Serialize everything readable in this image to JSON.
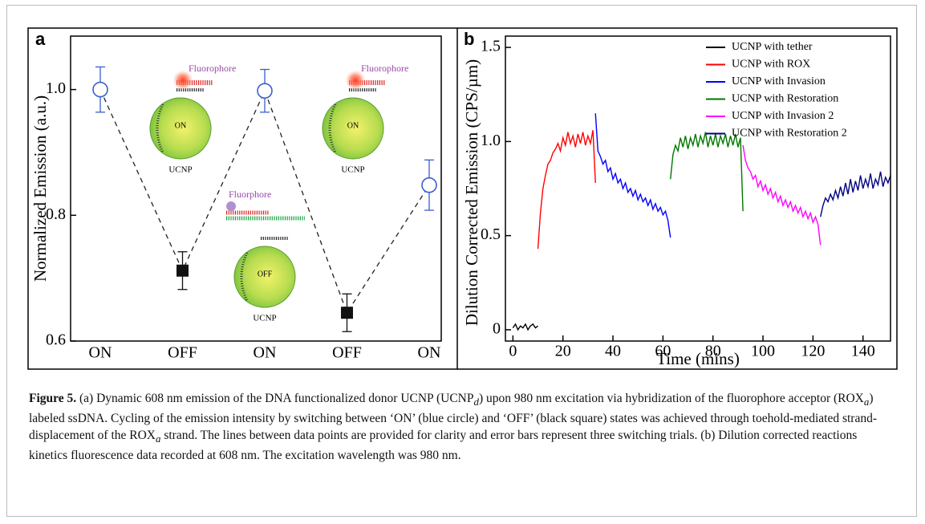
{
  "chart_data": [
    {
      "type": "line",
      "panel_label": "a",
      "ylabel": "Normalized Emission (a.u.)",
      "categories": [
        "ON",
        "OFF",
        "ON",
        "OFF",
        "ON"
      ],
      "values": [
        1.0,
        0.712,
        0.998,
        0.645,
        0.848
      ],
      "errors": [
        0.036,
        0.03,
        0.034,
        0.03,
        0.04
      ],
      "point_styles": [
        "circle",
        "square",
        "circle",
        "square",
        "circle"
      ],
      "point_colors": [
        "#3a5fcd",
        "#111111",
        "#3a5fcd",
        "#111111",
        "#3a5fcd"
      ],
      "line_style": "dashed",
      "ylim": [
        0.6,
        1.085
      ],
      "yticks": [
        0.6,
        0.8,
        {
          "value": 1,
          "label": "1.0"
        }
      ],
      "annotations": [
        "Fluorophore",
        "ON",
        "UCNP",
        "Fluorophore",
        "ON",
        "UCNP",
        "Fluorphore",
        "OFF",
        "UCNP"
      ]
    },
    {
      "type": "line",
      "panel_label": "b",
      "xlabel": "Time (mins)",
      "ylabel": "Dilution Corrected Emission (CPS/µm)",
      "xlim": [
        -3,
        151
      ],
      "ylim": [
        -0.06,
        1.56
      ],
      "xticks": [
        0,
        20,
        40,
        60,
        80,
        100,
        120,
        140
      ],
      "yticks": [
        0,
        0.5,
        {
          "value": 1,
          "label": "1.0"
        },
        1.5
      ],
      "legend": "upper right",
      "series": [
        {
          "name": "UCNP with tether",
          "color": "#000000",
          "x": [
            0,
            1,
            2,
            3,
            4,
            5,
            6,
            7,
            8,
            9,
            10
          ],
          "values": [
            0.01,
            0.03,
            0.0,
            0.02,
            0.01,
            0.03,
            0.0,
            0.02,
            0.03,
            0.01,
            0.02
          ]
        },
        {
          "name": "UCNP with ROX",
          "color": "#ff0000",
          "x": [
            10,
            11,
            12,
            13,
            14,
            15,
            16,
            17,
            18,
            19,
            20,
            21,
            22,
            23,
            24,
            25,
            26,
            27,
            28,
            29,
            30,
            31,
            32,
            33
          ],
          "values": [
            0.43,
            0.62,
            0.75,
            0.82,
            0.88,
            0.9,
            0.94,
            0.96,
            0.99,
            0.95,
            1.02,
            0.98,
            1.05,
            0.99,
            1.03,
            0.97,
            1.04,
            0.99,
            1.05,
            0.98,
            1.03,
            0.99,
            1.06,
            0.78
          ]
        },
        {
          "name": "UCNP with Invasion",
          "color": "#0000ff",
          "x": [
            33,
            34,
            35,
            36,
            37,
            38,
            39,
            40,
            41,
            42,
            43,
            44,
            45,
            46,
            47,
            48,
            49,
            50,
            51,
            52,
            53,
            54,
            55,
            56,
            57,
            58,
            59,
            60,
            61,
            62,
            63
          ],
          "values": [
            1.15,
            0.95,
            0.92,
            0.88,
            0.9,
            0.84,
            0.86,
            0.8,
            0.83,
            0.78,
            0.8,
            0.75,
            0.78,
            0.73,
            0.75,
            0.71,
            0.74,
            0.69,
            0.72,
            0.68,
            0.7,
            0.66,
            0.69,
            0.64,
            0.67,
            0.63,
            0.65,
            0.61,
            0.63,
            0.58,
            0.49
          ]
        },
        {
          "name": "UCNP with Restoration",
          "color": "#007700",
          "x": [
            63,
            64,
            65,
            66,
            67,
            68,
            69,
            70,
            71,
            72,
            73,
            74,
            75,
            76,
            77,
            78,
            79,
            80,
            81,
            82,
            83,
            84,
            85,
            86,
            87,
            88,
            89,
            90,
            91,
            92
          ],
          "values": [
            0.8,
            0.93,
            0.98,
            0.95,
            1.02,
            0.97,
            1.03,
            0.96,
            1.02,
            0.98,
            1.04,
            0.97,
            1.03,
            0.99,
            1.05,
            0.97,
            1.03,
            0.98,
            1.04,
            0.97,
            1.03,
            0.99,
            1.04,
            0.97,
            1.03,
            0.98,
            1.04,
            0.97,
            1.02,
            0.63
          ]
        },
        {
          "name": "UCNP with Invasion 2",
          "color": "#ff00ff",
          "x": [
            92,
            93,
            94,
            95,
            96,
            97,
            98,
            99,
            100,
            101,
            102,
            103,
            104,
            105,
            106,
            107,
            108,
            109,
            110,
            111,
            112,
            113,
            114,
            115,
            116,
            117,
            118,
            119,
            120,
            121,
            122,
            123
          ],
          "values": [
            0.98,
            0.9,
            0.86,
            0.84,
            0.8,
            0.82,
            0.76,
            0.79,
            0.74,
            0.77,
            0.72,
            0.75,
            0.7,
            0.73,
            0.68,
            0.71,
            0.66,
            0.69,
            0.65,
            0.68,
            0.63,
            0.66,
            0.62,
            0.65,
            0.6,
            0.63,
            0.59,
            0.62,
            0.57,
            0.6,
            0.56,
            0.45
          ]
        },
        {
          "name": "UCNP with Restoration 2",
          "color": "#000080",
          "x": [
            123,
            124,
            125,
            126,
            127,
            128,
            129,
            130,
            131,
            132,
            133,
            134,
            135,
            136,
            137,
            138,
            139,
            140,
            141,
            142,
            143,
            144,
            145,
            146,
            147,
            148,
            149,
            150,
            151
          ],
          "values": [
            0.6,
            0.66,
            0.7,
            0.68,
            0.72,
            0.69,
            0.74,
            0.7,
            0.76,
            0.71,
            0.78,
            0.72,
            0.8,
            0.73,
            0.79,
            0.74,
            0.82,
            0.75,
            0.8,
            0.76,
            0.83,
            0.75,
            0.8,
            0.77,
            0.84,
            0.76,
            0.81,
            0.78,
            0.82
          ]
        }
      ]
    }
  ],
  "caption": {
    "label": "Figure 5.",
    "parts": [
      " (a) Dynamic 608 nm emission of the DNA functionalized donor UCNP (UCNP",
      "d",
      ") upon 980 nm excitation via hybridization of the fluorophore acceptor (ROX",
      "a",
      ") labeled ssDNA. Cycling of the emission intensity by switching between ‘ON’ (blue circle) and ‘OFF’ (black square) states was achieved through toehold-mediated strand-displacement of the ROX",
      "a",
      " strand. The lines between data points are provided for clarity and error bars represent three switching trials. (b) Dilution corrected reactions kinetics fluorescence data recorded at 608 nm. The excitation wavelength was 980 nm."
    ]
  }
}
